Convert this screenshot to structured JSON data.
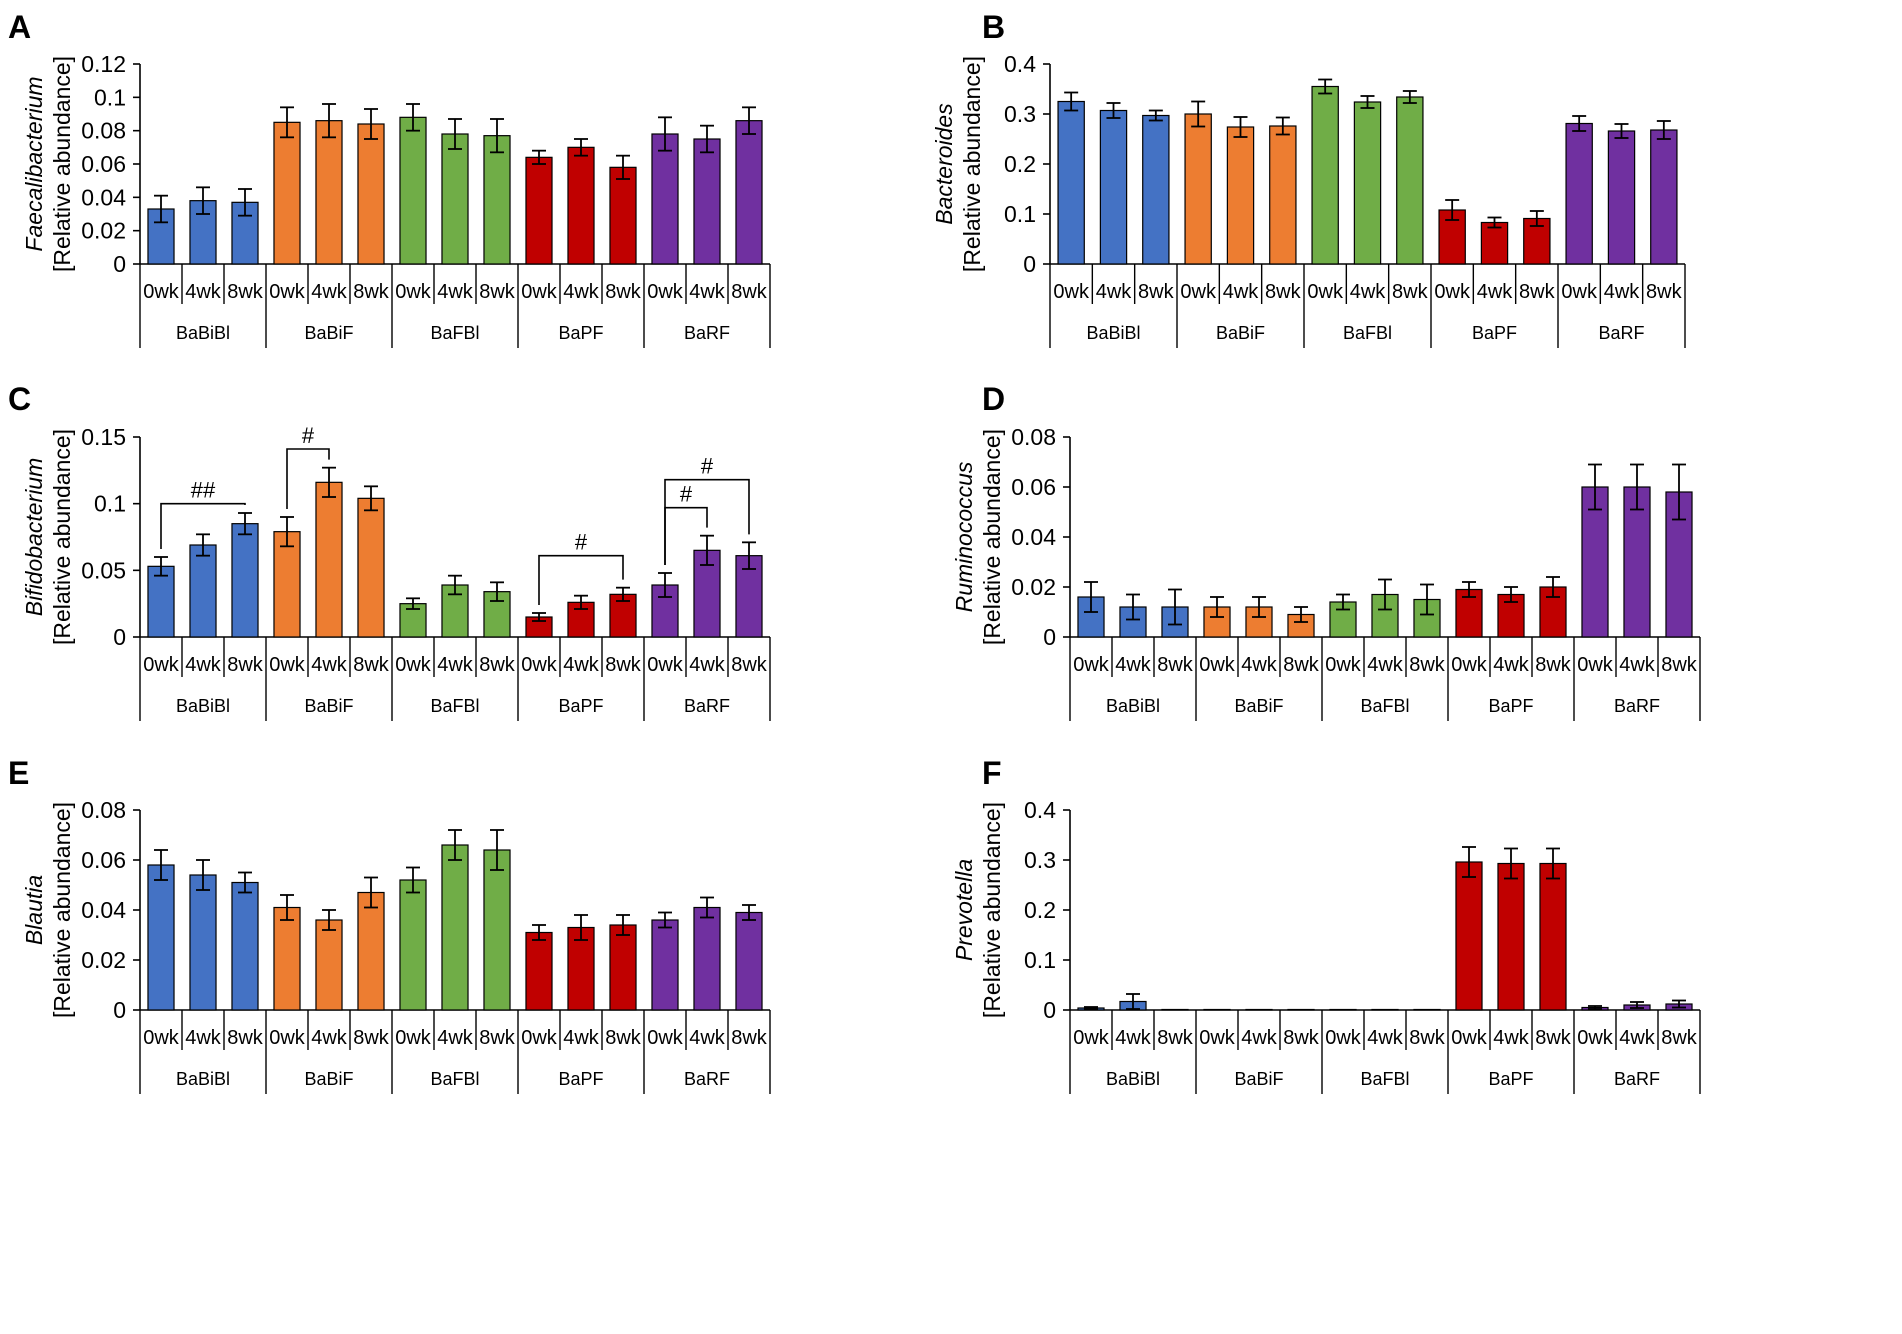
{
  "timepoints": [
    "0wk",
    "4wk",
    "8wk"
  ],
  "groups": [
    "BaBiBl",
    "BaBiF",
    "BaFBl",
    "BaPF",
    "BaRF"
  ],
  "colors": {
    "BaBiBl": "#4472c4",
    "BaBiF": "#ed7d31",
    "BaFBl": "#70ad47",
    "BaPF": "#c00000",
    "BaRF": "#7030a0",
    "axis": "#000000"
  },
  "chart_data": [
    {
      "type": "bar",
      "panel": "A",
      "ylabel_italic": "Faecalibacterium",
      "ylabel": "[Relative abundance]",
      "ylim": [
        0,
        0.12
      ],
      "yticks": [
        0,
        0.02,
        0.04,
        0.06,
        0.08,
        0.1,
        0.12
      ],
      "ytick_labels": [
        "0",
        "0.02",
        "0.04",
        "0.06",
        "0.08",
        "0.1",
        "0.12"
      ],
      "series": [
        {
          "name": "BaBiBl",
          "values": [
            0.033,
            0.038,
            0.037
          ],
          "errors": [
            0.008,
            0.008,
            0.008
          ]
        },
        {
          "name": "BaBiF",
          "values": [
            0.085,
            0.086,
            0.084
          ],
          "errors": [
            0.009,
            0.01,
            0.009
          ]
        },
        {
          "name": "BaFBl",
          "values": [
            0.088,
            0.078,
            0.077
          ],
          "errors": [
            0.008,
            0.009,
            0.01
          ]
        },
        {
          "name": "BaPF",
          "values": [
            0.064,
            0.07,
            0.058
          ],
          "errors": [
            0.004,
            0.005,
            0.007
          ]
        },
        {
          "name": "BaRF",
          "values": [
            0.078,
            0.075,
            0.086
          ],
          "errors": [
            0.01,
            0.008,
            0.008
          ]
        }
      ],
      "annotations": []
    },
    {
      "type": "bar",
      "panel": "B",
      "ylabel_italic": "Bacteroides",
      "ylabel": "[Relative abundance]",
      "ylim": [
        0,
        0.4
      ],
      "yticks": [
        0,
        0.1,
        0.2,
        0.3,
        0.4
      ],
      "ytick_labels": [
        "0",
        "0.1",
        "0.2",
        "0.3",
        "0.4"
      ],
      "series": [
        {
          "name": "BaBiBl",
          "values": [
            0.325,
            0.307,
            0.297
          ],
          "errors": [
            0.018,
            0.015,
            0.01
          ]
        },
        {
          "name": "BaBiF",
          "values": [
            0.3,
            0.274,
            0.276
          ],
          "errors": [
            0.025,
            0.02,
            0.017
          ]
        },
        {
          "name": "BaFBl",
          "values": [
            0.355,
            0.324,
            0.334
          ],
          "errors": [
            0.014,
            0.012,
            0.012
          ]
        },
        {
          "name": "BaPF",
          "values": [
            0.108,
            0.083,
            0.091
          ],
          "errors": [
            0.02,
            0.01,
            0.015
          ]
        },
        {
          "name": "BaRF",
          "values": [
            0.281,
            0.266,
            0.268
          ],
          "errors": [
            0.015,
            0.014,
            0.018
          ]
        }
      ],
      "annotations": []
    },
    {
      "type": "bar",
      "panel": "C",
      "ylabel_italic": "Bifidobacterium",
      "ylabel": "[Relative abundance]",
      "ylim": [
        0,
        0.15
      ],
      "yticks": [
        0,
        0.05,
        0.1,
        0.15
      ],
      "ytick_labels": [
        "0",
        "0.05",
        "0.1",
        "0.15"
      ],
      "series": [
        {
          "name": "BaBiBl",
          "values": [
            0.053,
            0.069,
            0.085
          ],
          "errors": [
            0.007,
            0.008,
            0.008
          ]
        },
        {
          "name": "BaBiF",
          "values": [
            0.079,
            0.116,
            0.104
          ],
          "errors": [
            0.011,
            0.011,
            0.009
          ]
        },
        {
          "name": "BaFBl",
          "values": [
            0.025,
            0.039,
            0.034
          ],
          "errors": [
            0.004,
            0.007,
            0.007
          ]
        },
        {
          "name": "BaPF",
          "values": [
            0.015,
            0.026,
            0.032
          ],
          "errors": [
            0.003,
            0.005,
            0.005
          ]
        },
        {
          "name": "BaRF",
          "values": [
            0.039,
            0.065,
            0.061
          ],
          "errors": [
            0.009,
            0.011,
            0.01
          ]
        }
      ],
      "annotations": [
        {
          "label": "##",
          "group": 0,
          "from": 0,
          "to": 2,
          "bracket_y": 0.1
        },
        {
          "label": "#",
          "group": 1,
          "from": 0,
          "to": 1,
          "bracket_y": 0.141
        },
        {
          "label": "#",
          "group": 3,
          "from": 0,
          "to": 2,
          "bracket_y": 0.061
        },
        {
          "label": "#",
          "group": 4,
          "from": 0,
          "to": 1,
          "bracket_y": 0.097
        },
        {
          "label": "#",
          "group": 4,
          "from": 0,
          "to": 2,
          "bracket_y": 0.118
        }
      ]
    },
    {
      "type": "bar",
      "panel": "D",
      "ylabel_italic": "Ruminococcus",
      "ylabel": "[Relative abundance]",
      "ylim": [
        0,
        0.08
      ],
      "yticks": [
        0,
        0.02,
        0.04,
        0.06,
        0.08
      ],
      "ytick_labels": [
        "0",
        "0.02",
        "0.04",
        "0.06",
        "0.08"
      ],
      "series": [
        {
          "name": "BaBiBl",
          "values": [
            0.016,
            0.012,
            0.012
          ],
          "errors": [
            0.006,
            0.005,
            0.007
          ]
        },
        {
          "name": "BaBiF",
          "values": [
            0.012,
            0.012,
            0.009
          ],
          "errors": [
            0.004,
            0.004,
            0.003
          ]
        },
        {
          "name": "BaFBl",
          "values": [
            0.014,
            0.017,
            0.015
          ],
          "errors": [
            0.003,
            0.006,
            0.006
          ]
        },
        {
          "name": "BaPF",
          "values": [
            0.019,
            0.017,
            0.02
          ],
          "errors": [
            0.003,
            0.003,
            0.004
          ]
        },
        {
          "name": "BaRF",
          "values": [
            0.06,
            0.06,
            0.058
          ],
          "errors": [
            0.009,
            0.009,
            0.011
          ]
        }
      ],
      "annotations": []
    },
    {
      "type": "bar",
      "panel": "E",
      "ylabel_italic": "Blautia",
      "ylabel": "[Relative abundance]",
      "ylim": [
        0,
        0.08
      ],
      "yticks": [
        0,
        0.02,
        0.04,
        0.06,
        0.08
      ],
      "ytick_labels": [
        "0",
        "0.02",
        "0.04",
        "0.06",
        "0.08"
      ],
      "series": [
        {
          "name": "BaBiBl",
          "values": [
            0.058,
            0.054,
            0.051
          ],
          "errors": [
            0.006,
            0.006,
            0.004
          ]
        },
        {
          "name": "BaBiF",
          "values": [
            0.041,
            0.036,
            0.047
          ],
          "errors": [
            0.005,
            0.004,
            0.006
          ]
        },
        {
          "name": "BaFBl",
          "values": [
            0.052,
            0.066,
            0.064
          ],
          "errors": [
            0.005,
            0.006,
            0.008
          ]
        },
        {
          "name": "BaPF",
          "values": [
            0.031,
            0.033,
            0.034
          ],
          "errors": [
            0.003,
            0.005,
            0.004
          ]
        },
        {
          "name": "BaRF",
          "values": [
            0.036,
            0.041,
            0.039
          ],
          "errors": [
            0.003,
            0.004,
            0.003
          ]
        }
      ],
      "annotations": []
    },
    {
      "type": "bar",
      "panel": "F",
      "ylabel_italic": "Prevotella",
      "ylabel": "[Relative abundance]",
      "ylim": [
        0,
        0.4
      ],
      "yticks": [
        0,
        0.1,
        0.2,
        0.3,
        0.4
      ],
      "ytick_labels": [
        "0",
        "0.1",
        "0.2",
        "0.3",
        "0.4"
      ],
      "series": [
        {
          "name": "BaBiBl",
          "values": [
            0.004,
            0.017,
            0.001
          ],
          "errors": [
            0.002,
            0.015,
            0.0
          ]
        },
        {
          "name": "BaBiF",
          "values": [
            0.001,
            0.001,
            0.001
          ],
          "errors": [
            0.0,
            0.0,
            0.0
          ]
        },
        {
          "name": "BaFBl",
          "values": [
            0.001,
            0.001,
            0.001
          ],
          "errors": [
            0.0,
            0.0,
            0.0
          ]
        },
        {
          "name": "BaPF",
          "values": [
            0.296,
            0.293,
            0.293
          ],
          "errors": [
            0.03,
            0.03,
            0.03
          ]
        },
        {
          "name": "BaRF",
          "values": [
            0.005,
            0.01,
            0.012
          ],
          "errors": [
            0.003,
            0.006,
            0.007
          ]
        }
      ],
      "annotations": []
    }
  ]
}
